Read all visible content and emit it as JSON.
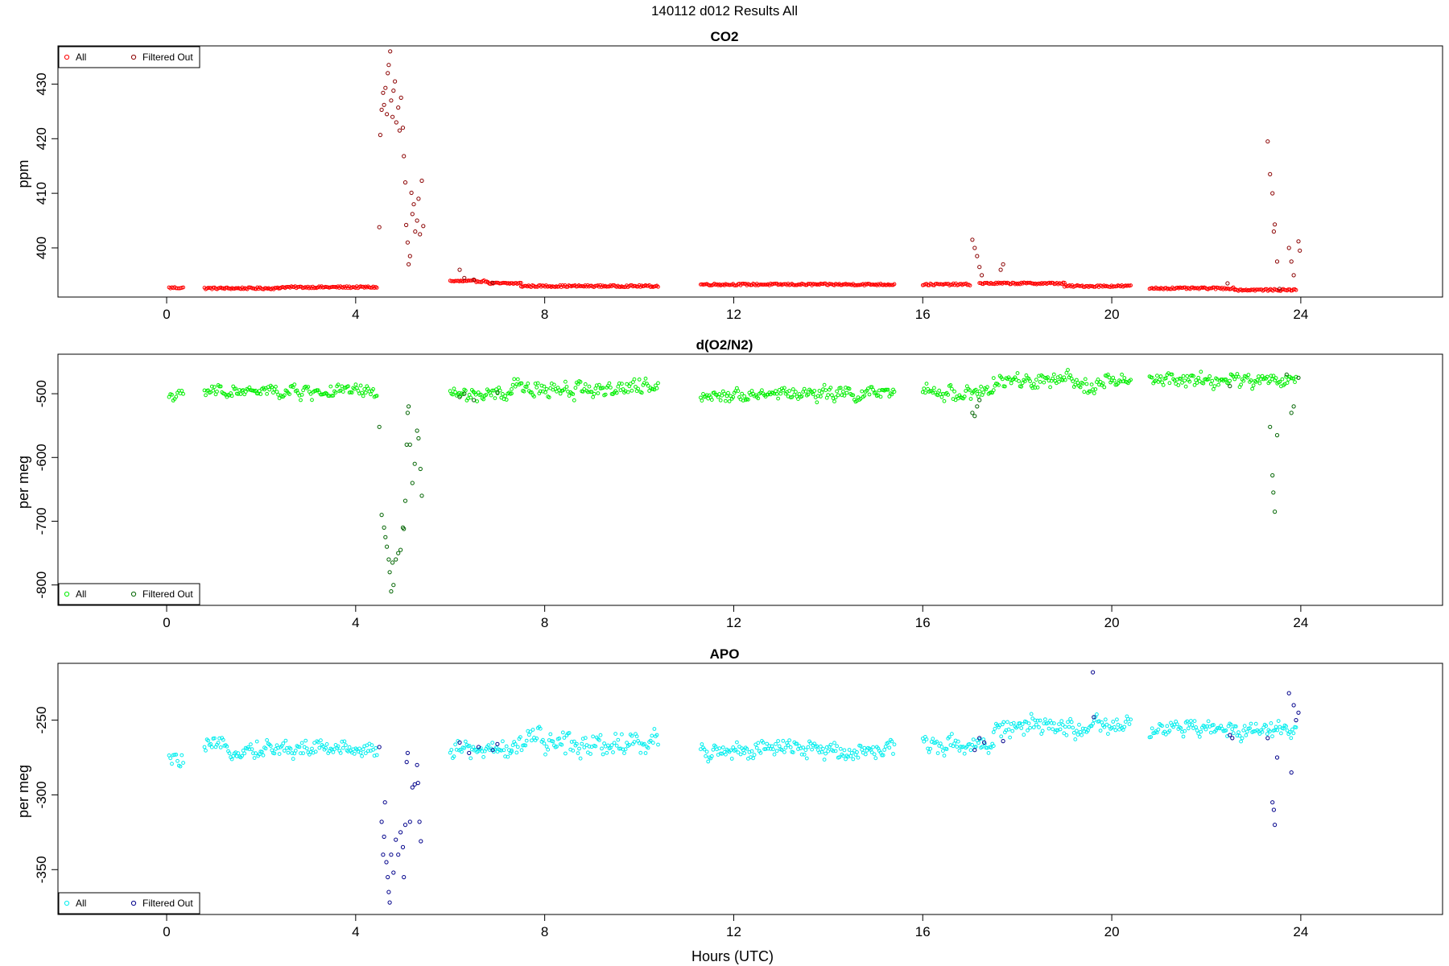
{
  "figure": {
    "title": "140112   d012   Results All",
    "xlabel": "Hours (UTC)"
  },
  "chart_data": [
    {
      "type": "scatter",
      "title": "CO2",
      "xlabel": "",
      "ylabel": "ppm",
      "xlim": [
        -2.3,
        27.0
      ],
      "ylim": [
        391.0,
        437.0
      ],
      "x_ticks": [
        0,
        4,
        8,
        12,
        16,
        20,
        24
      ],
      "y_ticks": [
        400,
        410,
        420,
        430
      ],
      "colors": {
        "all": "#ff0000",
        "filtered": "#8b0000"
      },
      "legend": {
        "position": "top-left",
        "entries": [
          "All",
          "Filtered Out"
        ]
      },
      "series": [
        {
          "name": "All",
          "segments": [
            {
              "x": [
                0.05,
                0.35
              ],
              "y": 392.7
            },
            {
              "x": [
                0.8,
                2.4
              ],
              "y": 392.6
            },
            {
              "x": [
                2.4,
                4.45
              ],
              "y": 392.8
            },
            {
              "x": [
                6.0,
                6.8
              ],
              "y": 393.9
            },
            {
              "x": [
                6.8,
                7.5
              ],
              "y": 393.5
            },
            {
              "x": [
                7.5,
                10.4
              ],
              "y": 393.0
            },
            {
              "x": [
                11.3,
                15.4
              ],
              "y": 393.3
            },
            {
              "x": [
                16.0,
                17.0
              ],
              "y": 393.3
            },
            {
              "x": [
                17.2,
                19.0
              ],
              "y": 393.5
            },
            {
              "x": [
                19.0,
                20.4
              ],
              "y": 393.0
            },
            {
              "x": [
                20.8,
                22.6
              ],
              "y": 392.6
            },
            {
              "x": [
                22.6,
                23.9
              ],
              "y": 392.3
            }
          ]
        },
        {
          "name": "Filtered Out",
          "points": [
            [
              4.5,
              403.8
            ],
            [
              4.52,
              420.7
            ],
            [
              4.55,
              425.3
            ],
            [
              4.58,
              428.4
            ],
            [
              4.6,
              426.2
            ],
            [
              4.63,
              429.3
            ],
            [
              4.66,
              424.5
            ],
            [
              4.68,
              432.0
            ],
            [
              4.7,
              433.5
            ],
            [
              4.73,
              436.0
            ],
            [
              4.75,
              427.0
            ],
            [
              4.78,
              424.0
            ],
            [
              4.8,
              428.8
            ],
            [
              4.83,
              430.5
            ],
            [
              4.86,
              423.0
            ],
            [
              4.9,
              425.7
            ],
            [
              4.93,
              421.5
            ],
            [
              4.96,
              427.5
            ],
            [
              5.0,
              422.0
            ],
            [
              5.02,
              416.8
            ],
            [
              5.05,
              412.0
            ],
            [
              5.07,
              404.2
            ],
            [
              5.1,
              401.0
            ],
            [
              5.12,
              397.0
            ],
            [
              5.15,
              398.5
            ],
            [
              5.18,
              410.1
            ],
            [
              5.2,
              406.2
            ],
            [
              5.23,
              408.0
            ],
            [
              5.26,
              403.0
            ],
            [
              5.3,
              405.0
            ],
            [
              5.33,
              409.0
            ],
            [
              5.36,
              402.5
            ],
            [
              5.4,
              412.3
            ],
            [
              5.43,
              404.0
            ],
            [
              6.2,
              396.0
            ],
            [
              6.3,
              394.5
            ],
            [
              6.5,
              394.2
            ],
            [
              6.9,
              393.6
            ],
            [
              17.05,
              401.5
            ],
            [
              17.1,
              400.0
            ],
            [
              17.15,
              398.5
            ],
            [
              17.2,
              396.5
            ],
            [
              17.25,
              395.0
            ],
            [
              17.65,
              396.0
            ],
            [
              17.7,
              397.0
            ],
            [
              22.45,
              393.5
            ],
            [
              23.3,
              419.5
            ],
            [
              23.35,
              413.5
            ],
            [
              23.4,
              410.0
            ],
            [
              23.43,
              403.0
            ],
            [
              23.45,
              404.3
            ],
            [
              23.5,
              397.5
            ],
            [
              23.55,
              392.5
            ],
            [
              23.75,
              400.0
            ],
            [
              23.8,
              397.5
            ],
            [
              23.85,
              395.0
            ],
            [
              23.95,
              401.2
            ],
            [
              23.98,
              399.5
            ]
          ]
        }
      ]
    },
    {
      "type": "scatter",
      "title": "d(O2/N2)",
      "xlabel": "",
      "ylabel": "per meg",
      "xlim": [
        -2.3,
        27.0
      ],
      "ylim": [
        -832,
        -438
      ],
      "x_ticks": [
        0,
        4,
        8,
        12,
        16,
        20,
        24
      ],
      "y_ticks": [
        -800,
        -700,
        -600,
        -500
      ],
      "colors": {
        "all": "#00ee00",
        "filtered": "#006400"
      },
      "legend": {
        "position": "bottom-left",
        "entries": [
          "All",
          "Filtered Out"
        ]
      },
      "series": [
        {
          "name": "All",
          "segments": [
            {
              "x": [
                0.05,
                0.35
              ],
              "y": -503,
              "spread": 8
            },
            {
              "x": [
                0.8,
                4.45
              ],
              "y": -497,
              "spread": 13
            },
            {
              "x": [
                6.0,
                7.3
              ],
              "y": -502,
              "spread": 14
            },
            {
              "x": [
                7.3,
                10.4
              ],
              "y": -492,
              "spread": 17
            },
            {
              "x": [
                11.3,
                15.4
              ],
              "y": -500,
              "spread": 13
            },
            {
              "x": [
                16.0,
                17.5
              ],
              "y": -498,
              "spread": 14
            },
            {
              "x": [
                17.5,
                20.4
              ],
              "y": -482,
              "spread": 16
            },
            {
              "x": [
                20.8,
                23.9
              ],
              "y": -479,
              "spread": 14
            }
          ]
        },
        {
          "name": "Filtered Out",
          "points": [
            [
              4.5,
              -552
            ],
            [
              4.55,
              -690
            ],
            [
              4.6,
              -710
            ],
            [
              4.63,
              -725
            ],
            [
              4.66,
              -740
            ],
            [
              4.7,
              -760
            ],
            [
              4.72,
              -780
            ],
            [
              4.75,
              -810
            ],
            [
              4.78,
              -765
            ],
            [
              4.8,
              -800
            ],
            [
              4.85,
              -760
            ],
            [
              4.9,
              -750
            ],
            [
              4.95,
              -745
            ],
            [
              5.0,
              -710
            ],
            [
              5.02,
              -712
            ],
            [
              5.05,
              -668
            ],
            [
              5.08,
              -580
            ],
            [
              5.1,
              -530
            ],
            [
              5.12,
              -520
            ],
            [
              5.15,
              -580
            ],
            [
              5.2,
              -640
            ],
            [
              5.25,
              -610
            ],
            [
              5.3,
              -558
            ],
            [
              5.33,
              -570
            ],
            [
              5.37,
              -618
            ],
            [
              5.4,
              -660
            ],
            [
              6.2,
              -505
            ],
            [
              6.3,
              -500
            ],
            [
              6.5,
              -510
            ],
            [
              7.0,
              -498
            ],
            [
              17.05,
              -530
            ],
            [
              17.1,
              -535
            ],
            [
              17.15,
              -520
            ],
            [
              17.2,
              -510
            ],
            [
              22.5,
              -488
            ],
            [
              23.35,
              -552
            ],
            [
              23.4,
              -628
            ],
            [
              23.42,
              -655
            ],
            [
              23.45,
              -685
            ],
            [
              23.5,
              -565
            ],
            [
              23.7,
              -470
            ],
            [
              23.8,
              -530
            ],
            [
              23.85,
              -520
            ],
            [
              23.95,
              -475
            ]
          ]
        }
      ]
    },
    {
      "type": "scatter",
      "title": "APO",
      "xlabel": "",
      "ylabel": "per meg",
      "xlim": [
        -2.3,
        27.0
      ],
      "ylim": [
        -380,
        -212
      ],
      "x_ticks": [
        0,
        4,
        8,
        12,
        16,
        20,
        24
      ],
      "y_ticks": [
        -350,
        -300,
        -250
      ],
      "colors": {
        "all": "#00eeee",
        "filtered": "#00008b"
      },
      "legend": {
        "position": "bottom-left",
        "entries": [
          "All",
          "Filtered Out"
        ]
      },
      "series": [
        {
          "name": "All",
          "segments": [
            {
              "x": [
                0.05,
                0.35
              ],
              "y": -277,
              "spread": 6
            },
            {
              "x": [
                0.8,
                4.45
              ],
              "y": -269,
              "spread": 7
            },
            {
              "x": [
                6.0,
                7.3
              ],
              "y": -270,
              "spread": 7
            },
            {
              "x": [
                7.3,
                10.4
              ],
              "y": -265,
              "spread": 10
            },
            {
              "x": [
                11.3,
                15.4
              ],
              "y": -270,
              "spread": 8
            },
            {
              "x": [
                16.0,
                17.5
              ],
              "y": -266,
              "spread": 7
            },
            {
              "x": [
                17.5,
                20.4
              ],
              "y": -255,
              "spread": 8
            },
            {
              "x": [
                20.8,
                23.9
              ],
              "y": -256,
              "spread": 7
            }
          ]
        },
        {
          "name": "Filtered Out",
          "points": [
            [
              4.5,
              -268
            ],
            [
              4.55,
              -318
            ],
            [
              4.58,
              -340
            ],
            [
              4.6,
              -328
            ],
            [
              4.62,
              -305
            ],
            [
              4.65,
              -345
            ],
            [
              4.68,
              -355
            ],
            [
              4.7,
              -365
            ],
            [
              4.72,
              -372
            ],
            [
              4.75,
              -340
            ],
            [
              4.8,
              -352
            ],
            [
              4.85,
              -330
            ],
            [
              4.9,
              -340
            ],
            [
              4.95,
              -325
            ],
            [
              5.0,
              -335
            ],
            [
              5.02,
              -355
            ],
            [
              5.05,
              -320
            ],
            [
              5.08,
              -278
            ],
            [
              5.1,
              -272
            ],
            [
              5.15,
              -318
            ],
            [
              5.2,
              -295
            ],
            [
              5.25,
              -293
            ],
            [
              5.3,
              -280
            ],
            [
              5.32,
              -292
            ],
            [
              5.35,
              -318
            ],
            [
              5.38,
              -331
            ],
            [
              6.2,
              -265
            ],
            [
              6.4,
              -272
            ],
            [
              6.6,
              -268
            ],
            [
              6.9,
              -270
            ],
            [
              7.0,
              -266
            ],
            [
              17.1,
              -270
            ],
            [
              17.2,
              -262
            ],
            [
              17.3,
              -265
            ],
            [
              17.7,
              -264
            ],
            [
              19.6,
              -218
            ],
            [
              19.62,
              -248
            ],
            [
              22.5,
              -260
            ],
            [
              22.55,
              -262
            ],
            [
              23.3,
              -262
            ],
            [
              23.4,
              -305
            ],
            [
              23.43,
              -310
            ],
            [
              23.45,
              -320
            ],
            [
              23.5,
              -275
            ],
            [
              23.75,
              -232
            ],
            [
              23.8,
              -285
            ],
            [
              23.85,
              -240
            ],
            [
              23.9,
              -250
            ],
            [
              23.95,
              -245
            ]
          ]
        }
      ]
    }
  ]
}
